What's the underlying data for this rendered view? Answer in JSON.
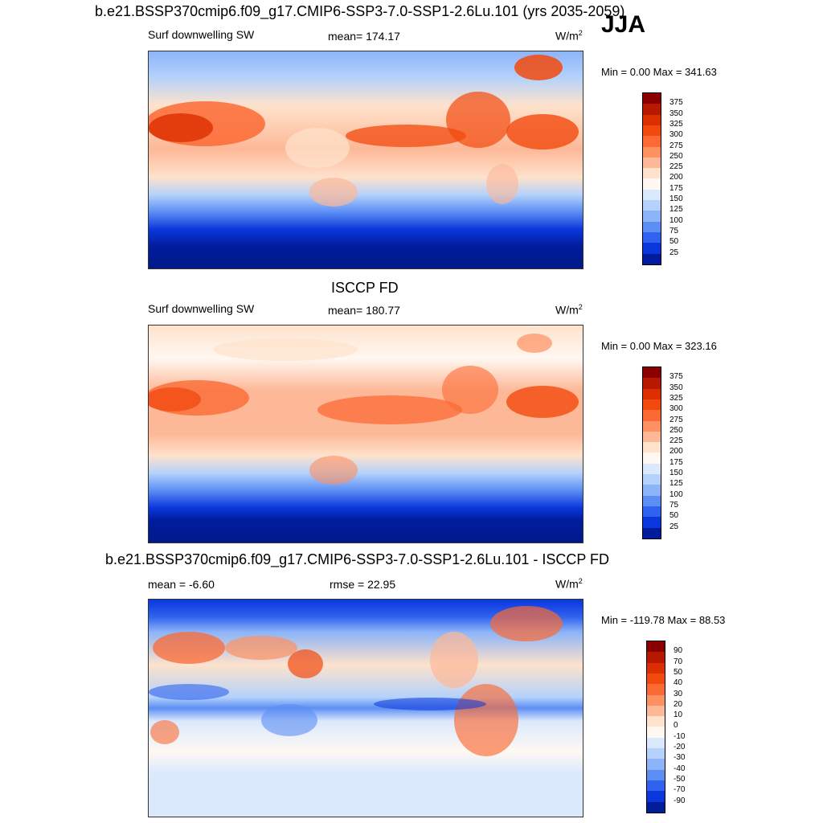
{
  "season": "JJA",
  "units_prefix": "W/m",
  "units_sup": "2",
  "panels": [
    {
      "title": "b.e21.BSSP370cmip6.f09_g17.CMIP6-SSP3-7.0-SSP1-2.6Lu.101 (yrs 2035-2059)",
      "variable": "Surf downwelling SW",
      "stat": "mean= 174.17",
      "minmax": "Min =   0.00 Max = 341.63"
    },
    {
      "title": "ISCCP FD",
      "variable": "Surf downwelling SW",
      "stat": "mean= 180.77",
      "minmax": "Min =   0.00 Max = 323.16"
    },
    {
      "title": "b.e21.BSSP370cmip6.f09_g17.CMIP6-SSP3-7.0-SSP1-2.6Lu.101 - ISCCP FD",
      "stat_left": "mean =  -6.60",
      "stat_mid": "rmse =  22.95",
      "minmax": "Min = -119.78 Max =  88.53"
    }
  ],
  "colorbars": {
    "abs": {
      "labels": [
        "375",
        "350",
        "325",
        "300",
        "275",
        "250",
        "225",
        "200",
        "175",
        "150",
        "125",
        "100",
        "75",
        "50",
        "25"
      ],
      "colors": [
        "#8a0000",
        "#b81800",
        "#dc2e00",
        "#f24a0e",
        "#fb6a34",
        "#fd9161",
        "#fdb897",
        "#fee2cc",
        "#fff8f2",
        "#dbe9fd",
        "#b4d2fb",
        "#8cb4f8",
        "#5c8ef4",
        "#2f63ef",
        "#0a37dc",
        "#001c9c"
      ]
    },
    "diff": {
      "labels": [
        "90",
        "70",
        "50",
        "40",
        "30",
        "20",
        "10",
        "0",
        "-10",
        "-20",
        "-30",
        "-40",
        "-50",
        "-70",
        "-90"
      ],
      "colors": [
        "#8a0000",
        "#b81800",
        "#dc2e00",
        "#f24a0e",
        "#fb6a34",
        "#fd9161",
        "#fdb897",
        "#fee2cc",
        "#fff8f2",
        "#dbe9fd",
        "#b4d2fb",
        "#8cb4f8",
        "#5c8ef4",
        "#2f63ef",
        "#0a37dc",
        "#001c9c"
      ]
    }
  },
  "chart_data": [
    {
      "type": "heatmap",
      "title": "b.e21.BSSP370cmip6.f09_g17.CMIP6-SSP3-7.0-SSP1-2.6Lu.101 (yrs 2035-2059)",
      "variable": "Surf downwelling SW",
      "units": "W/m2",
      "mean": 174.17,
      "min": 0.0,
      "max": 341.63,
      "contour_levels": [
        25,
        50,
        75,
        100,
        125,
        150,
        175,
        200,
        225,
        250,
        275,
        300,
        325,
        350,
        375
      ]
    },
    {
      "type": "heatmap",
      "title": "ISCCP FD",
      "variable": "Surf downwelling SW",
      "units": "W/m2",
      "mean": 180.77,
      "min": 0.0,
      "max": 323.16,
      "contour_levels": [
        25,
        50,
        75,
        100,
        125,
        150,
        175,
        200,
        225,
        250,
        275,
        300,
        325,
        350,
        375
      ]
    },
    {
      "type": "heatmap",
      "title": "b.e21.BSSP370cmip6.f09_g17.CMIP6-SSP3-7.0-SSP1-2.6Lu.101 - ISCCP FD",
      "units": "W/m2",
      "mean": -6.6,
      "rmse": 22.95,
      "min": -119.78,
      "max": 88.53,
      "contour_levels": [
        -90,
        -70,
        -50,
        -40,
        -30,
        -20,
        -10,
        0,
        10,
        20,
        30,
        40,
        50,
        70,
        90
      ]
    }
  ]
}
